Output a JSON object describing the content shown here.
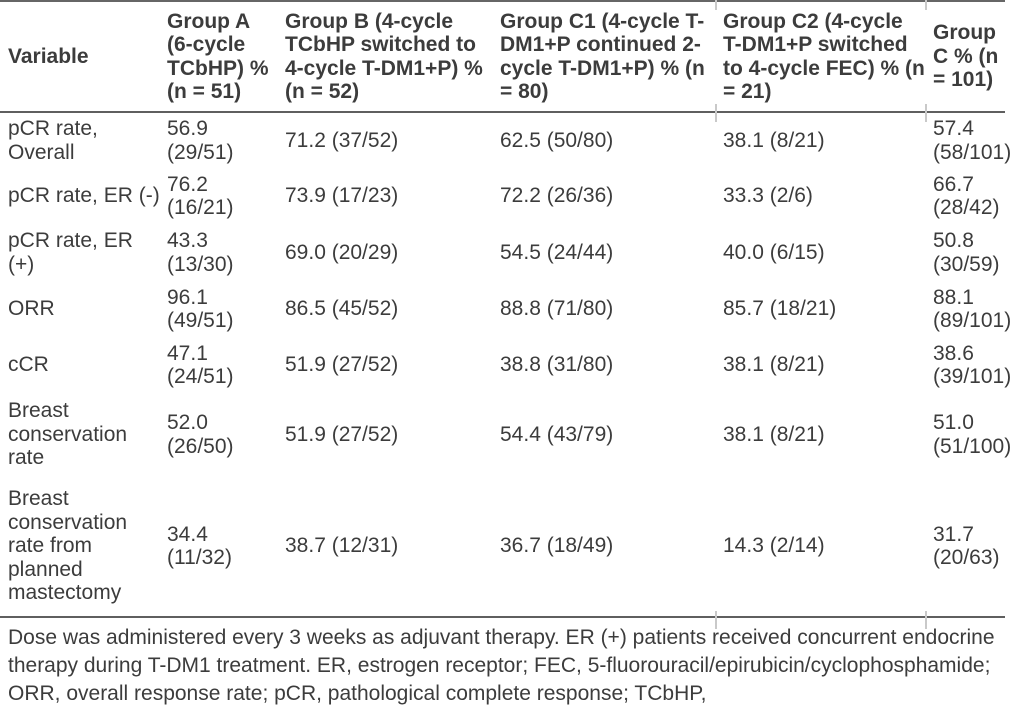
{
  "colors": {
    "text": "#3c3c3c",
    "rule": "#5f5f5f",
    "top_rule": "#666666",
    "separator_tick": "#c9c9c9",
    "background": "#ffffff"
  },
  "table": {
    "columns": [
      "Variable",
      "Group A\n(6-cycle\nTCbHP) %\n(n = 51)",
      "Group B (4-cycle\nTCbHP switched to\n4-cycle T-DM1+P) %\n(n = 52)",
      "Group C1 (4-cycle T-\nDM1+P continued 2-\ncycle T-DM1+P) % (n\n= 80)",
      "Group C2 (4-cycle\nT-DM1+P switched\nto 4-cycle FEC) % (n\n= 21)",
      "Group\nC % (n\n= 101)"
    ],
    "rows": [
      [
        "pCR rate,\nOverall",
        "56.9\n(29/51)",
        "71.2 (37/52)",
        "62.5 (50/80)",
        "38.1 (8/21)",
        "57.4\n(58/101)"
      ],
      [
        "pCR rate, ER (-)",
        "76.2\n(16/21)",
        "73.9 (17/23)",
        "72.2 (26/36)",
        "33.3 (2/6)",
        "66.7\n(28/42)"
      ],
      [
        "pCR rate, ER\n(+)",
        "43.3\n(13/30)",
        "69.0 (20/29)",
        "54.5 (24/44)",
        "40.0 (6/15)",
        "50.8\n(30/59)"
      ],
      [
        "ORR",
        "96.1\n(49/51)",
        "86.5 (45/52)",
        "88.8 (71/80)",
        "85.7 (18/21)",
        "88.1\n(89/101)"
      ],
      [
        "cCR",
        "47.1\n(24/51)",
        "51.9 (27/52)",
        "38.8 (31/80)",
        "38.1 (8/21)",
        "38.6\n(39/101)"
      ],
      [
        "Breast\nconservation\nrate",
        "52.0\n(26/50)",
        "51.9 (27/52)",
        "54.4 (43/79)",
        "38.1 (8/21)",
        "51.0\n(51/100)"
      ],
      [
        "Breast\nconservation\nrate from\nplanned\nmastectomy",
        "34.4\n(11/32)",
        "38.7 (12/31)",
        "36.7 (18/49)",
        "14.3 (2/14)",
        "31.7\n(20/63)"
      ]
    ]
  },
  "footnote": "Dose was administered every 3 weeks as adjuvant therapy. ER (+) patients received concurrent endocrine\ntherapy during T-DM1 treatment. ER, estrogen receptor; FEC, 5-fluorouracil/epirubicin/cyclophosphamide;\nORR, overall response rate; pCR, pathological complete response; TCbHP,"
}
